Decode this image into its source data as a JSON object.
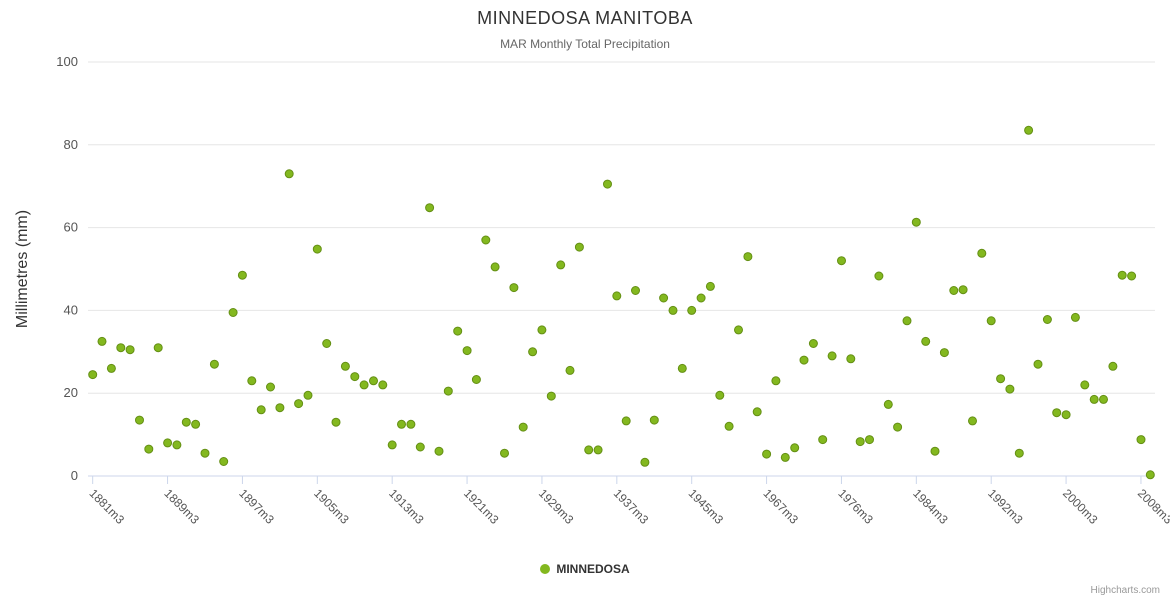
{
  "credits": "Highcharts.com",
  "chart_data": {
    "type": "scatter",
    "title": "MINNEDOSA MANITOBA",
    "subtitle": "MAR Monthly Total Precipitation",
    "xlabel": "",
    "ylabel": "Millimetres (mm)",
    "ylim": [
      0,
      100
    ],
    "yticks": [
      0,
      20,
      40,
      60,
      80,
      100
    ],
    "x_tick_interval": 8,
    "grid": "on",
    "legend_position": "bottom-center",
    "colors": {
      "point": "#83b81f",
      "point_border": "#648f14",
      "gridline": "#e6e6e6",
      "axis_line": "#ccd6eb",
      "title": "#333333",
      "subtitle": "#666666",
      "tick_label": "#555555"
    },
    "categories": [
      "1881m3",
      "1882m3",
      "1883m3",
      "1884m3",
      "1885m3",
      "1886m3",
      "1887m3",
      "1888m3",
      "1889m3",
      "1890m3",
      "1891m3",
      "1892m3",
      "1893m3",
      "1894m3",
      "1895m3",
      "1896m3",
      "1897m3",
      "1898m3",
      "1899m3",
      "1900m3",
      "1901m3",
      "1902m3",
      "1903m3",
      "1904m3",
      "1905m3",
      "1906m3",
      "1907m3",
      "1908m3",
      "1909m3",
      "1910m3",
      "1911m3",
      "1912m3",
      "1913m3",
      "1914m3",
      "1915m3",
      "1916m3",
      "1917m3",
      "1918m3",
      "1919m3",
      "1920m3",
      "1921m3",
      "1922m3",
      "1923m3",
      "1924m3",
      "1925m3",
      "1926m3",
      "1927m3",
      "1928m3",
      "1929m3",
      "1930m3",
      "1931m3",
      "1932m3",
      "1933m3",
      "1934m3",
      "1935m3",
      "1936m3",
      "1937m3",
      "1938m3",
      "1939m3",
      "1940m3",
      "1941m3",
      "1942m3",
      "1943m3",
      "1944m3",
      "1945m3",
      "1946m3",
      "1947m3",
      "1948m3",
      "1949m3",
      "1950m3",
      "1951m3",
      "1952m3",
      "1967m3",
      "1968m3",
      "1970m3",
      "1971m3",
      "1972m3",
      "1973m3",
      "1974m3",
      "1975m3",
      "1976m3",
      "1977m3",
      "1978m3",
      "1979m3",
      "1980m3",
      "1981m3",
      "1982m3",
      "1983m3",
      "1984m3",
      "1985m3",
      "1986m3",
      "1987m3",
      "1988m3",
      "1989m3",
      "1990m3",
      "1991m3",
      "1992m3",
      "1993m3",
      "1994m3",
      "1995m3",
      "1996m3",
      "1997m3",
      "1998m3",
      "1999m3",
      "2000m3",
      "2001m3",
      "2002m3",
      "2003m3",
      "2004m3",
      "2005m3",
      "2006m3",
      "2007m3",
      "2008m3",
      "2009m3"
    ],
    "series": [
      {
        "name": "MINNEDOSA",
        "color": "#83b81f",
        "values": [
          24.5,
          32.5,
          26,
          31,
          30.5,
          13.5,
          6.5,
          31,
          8,
          7.5,
          13,
          12.5,
          5.5,
          27,
          3.5,
          39.5,
          48.5,
          23,
          16,
          21.5,
          16.5,
          73,
          17.5,
          19.5,
          54.8,
          32,
          13,
          26.5,
          24,
          22,
          23,
          22,
          7.5,
          12.5,
          12.5,
          7,
          64.8,
          6,
          20.5,
          35,
          30.3,
          23.3,
          57,
          50.5,
          5.5,
          45.5,
          11.8,
          30,
          35.3,
          19.3,
          51,
          25.5,
          55.3,
          6.3,
          6.3,
          70.5,
          43.5,
          13.3,
          44.8,
          3.3,
          13.5,
          43,
          40,
          26,
          40,
          43,
          45.8,
          19.5,
          12,
          35.3,
          53,
          15.5,
          5.3,
          23,
          4.5,
          6.8,
          28,
          32,
          8.8,
          29,
          52,
          28.3,
          8.3,
          8.8,
          48.3,
          17.3,
          11.8,
          37.5,
          61.3,
          32.5,
          6,
          29.8,
          44.8,
          45,
          13.3,
          53.8,
          37.5,
          23.5,
          21,
          5.5,
          83.5,
          27,
          37.8,
          15.3,
          14.8,
          38.3,
          22,
          18.5,
          18.5,
          26.5,
          48.5,
          48.3,
          8.8,
          0.3
        ]
      }
    ]
  }
}
